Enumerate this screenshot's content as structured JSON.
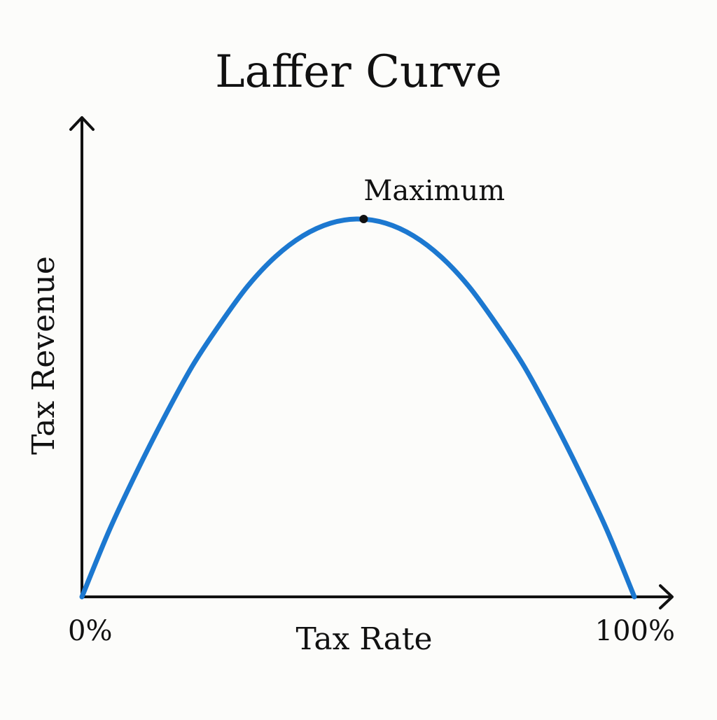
{
  "chart_data": {
    "type": "line",
    "title": "Laffer Curve",
    "xlabel": "Tax Rate",
    "ylabel": "Tax Revenue",
    "xlim": [
      0,
      100
    ],
    "ylim": [
      0,
      100
    ],
    "x_tick_labels": [
      {
        "value": 0,
        "label": "0%"
      },
      {
        "value": 100,
        "label": "100%"
      }
    ],
    "grid": false,
    "legend": "none",
    "series": [
      {
        "color": "#1c78d0",
        "x": [
          0,
          5,
          10,
          15,
          20,
          25,
          30,
          35,
          40,
          45,
          50,
          55,
          60,
          65,
          70,
          75,
          80,
          85,
          90,
          95,
          100
        ],
        "y": [
          0,
          16,
          30,
          43,
          55,
          65,
          74,
          81,
          86,
          89,
          90,
          89,
          86,
          81,
          74,
          65,
          55,
          43,
          30,
          16,
          0
        ]
      }
    ],
    "annotations": [
      {
        "text": "Maximum",
        "x": 51,
        "y": 93.1,
        "marker_color": "#111111"
      }
    ],
    "axis_color": "#111111"
  }
}
